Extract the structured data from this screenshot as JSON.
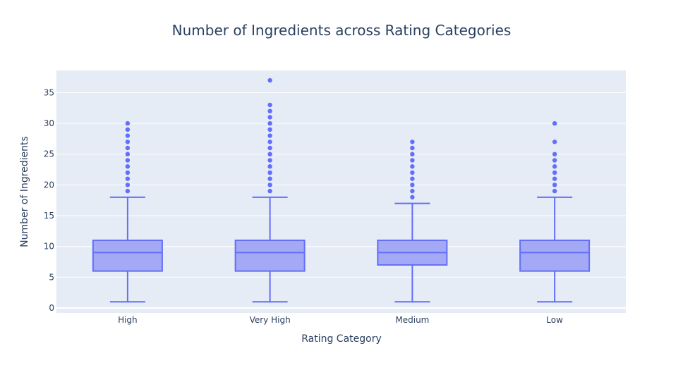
{
  "chart_data": {
    "type": "box",
    "title": "Number of Ingredients across Rating Categories",
    "xlabel": "Rating Category",
    "ylabel": "Number of Ingredients",
    "categories": [
      "High",
      "Very High",
      "Medium",
      "Low"
    ],
    "yticks": [
      0,
      5,
      10,
      15,
      20,
      25,
      30,
      35
    ],
    "ylim": [
      -0.8,
      38.6
    ],
    "grid": true,
    "colors": {
      "plot_bg": "#E5ECF6",
      "grid": "#ffffff",
      "box_line": "#636EFA",
      "box_fill": "#A3A9F5",
      "text": "#2a3f5f"
    },
    "boxes": [
      {
        "category": "High",
        "min": 1,
        "q1": 6,
        "median": 9,
        "q3": 11,
        "max": 18,
        "outliers": [
          19,
          20,
          21,
          22,
          23,
          24,
          25,
          26,
          27,
          28,
          29,
          30
        ]
      },
      {
        "category": "Very High",
        "min": 1,
        "q1": 6,
        "median": 9,
        "q3": 11,
        "max": 18,
        "outliers": [
          19,
          20,
          21,
          22,
          23,
          24,
          25,
          26,
          27,
          28,
          29,
          30,
          31,
          32,
          33,
          37
        ]
      },
      {
        "category": "Medium",
        "min": 1,
        "q1": 7,
        "median": 9,
        "q3": 11,
        "max": 17,
        "outliers": [
          18,
          19,
          20,
          21,
          22,
          23,
          24,
          25,
          26,
          27
        ]
      },
      {
        "category": "Low",
        "min": 1,
        "q1": 6,
        "median": 9,
        "q3": 11,
        "max": 18,
        "outliers": [
          19,
          20,
          21,
          22,
          23,
          24,
          25,
          27,
          30
        ]
      }
    ]
  }
}
